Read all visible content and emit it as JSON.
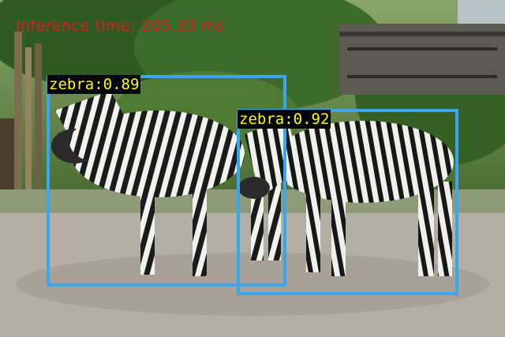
{
  "overlay": {
    "inference_text": "Inference time: 205.33 ms"
  },
  "detections": [
    {
      "label": "zebra:0.89",
      "color": "#39a7ee"
    },
    {
      "label": "zebra:0.92",
      "color": "#39a7ee"
    }
  ],
  "colors": {
    "box": "#39a7ee",
    "label_bg": "#000000",
    "label_text": "#ffff00",
    "inference_text": "#d81e1e"
  }
}
